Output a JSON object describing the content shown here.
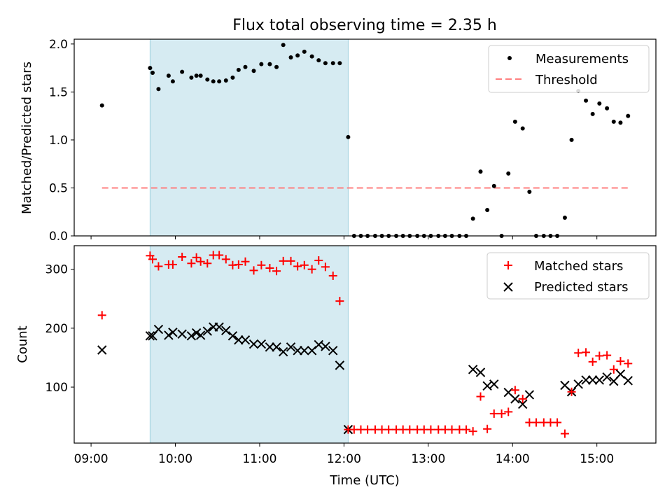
{
  "chart_data": {
    "title": "Flux total observing time = 2.35 h",
    "xlabel": "Time (UTC)",
    "x_ticks": [
      "09:00",
      "10:00",
      "11:00",
      "12:00",
      "13:00",
      "14:00",
      "15:00"
    ],
    "x_tick_hours": [
      9,
      10,
      11,
      12,
      13,
      14,
      15
    ],
    "xlim": [
      8.8,
      15.7
    ],
    "shaded_span": {
      "from": 9.7,
      "to": 12.05,
      "color": "#add8e6"
    },
    "panels": [
      {
        "type": "scatter",
        "ylabel": "Matched/Predicted stars",
        "ylim": [
          0,
          2.05
        ],
        "y_ticks": [
          0.0,
          0.5,
          1.0,
          1.5,
          2.0
        ],
        "y_tick_labels": [
          "0.0",
          "0.5",
          "1.0",
          "1.5",
          "2.0"
        ],
        "legend_position": "top-right",
        "series": [
          {
            "name": "Measurements",
            "marker": "dot",
            "color": "#000000",
            "x": [
              9.13,
              9.7,
              9.73,
              9.8,
              9.92,
              9.97,
              10.08,
              10.19,
              10.25,
              10.3,
              10.38,
              10.45,
              10.52,
              10.6,
              10.68,
              10.75,
              10.83,
              10.93,
              11.02,
              11.12,
              11.2,
              11.28,
              11.37,
              11.45,
              11.53,
              11.62,
              11.7,
              11.78,
              11.87,
              11.95,
              12.05,
              12.12,
              12.2,
              12.28,
              12.37,
              12.45,
              12.53,
              12.62,
              12.7,
              12.78,
              12.87,
              12.95,
              13.03,
              13.12,
              13.2,
              13.28,
              13.37,
              13.45,
              13.53,
              13.62,
              13.7,
              13.78,
              13.87,
              13.95,
              14.03,
              14.12,
              14.2,
              14.28,
              14.37,
              14.45,
              14.53,
              14.62,
              14.7,
              14.78,
              14.87,
              14.95,
              15.03,
              15.12,
              15.2,
              15.28,
              15.37
            ],
            "y": [
              1.36,
              1.75,
              1.7,
              1.53,
              1.67,
              1.61,
              1.71,
              1.65,
              1.67,
              1.67,
              1.63,
              1.61,
              1.61,
              1.62,
              1.65,
              1.73,
              1.76,
              1.72,
              1.79,
              1.79,
              1.76,
              1.99,
              1.86,
              1.88,
              1.92,
              1.87,
              1.83,
              1.8,
              1.8,
              1.8,
              1.03,
              0.0,
              0.0,
              0.0,
              0.0,
              0.0,
              0.0,
              0.0,
              0.0,
              0.0,
              0.0,
              0.0,
              0.0,
              0.0,
              0.0,
              0.0,
              0.0,
              0.0,
              0.18,
              0.67,
              0.27,
              0.52,
              0.0,
              0.65,
              1.19,
              1.12,
              0.46,
              0.0,
              0.0,
              0.0,
              0.0,
              0.19,
              1.0,
              1.51,
              1.41,
              1.27,
              1.38,
              1.33,
              1.19,
              1.18,
              1.25
            ]
          },
          {
            "name": "Threshold",
            "marker": "dashed-line",
            "color": "#ff7f7f",
            "x": [
              9.13,
              15.4
            ],
            "y": [
              0.5,
              0.5
            ]
          }
        ]
      },
      {
        "type": "scatter",
        "ylabel": "Count",
        "ylim": [
          5,
          340
        ],
        "y_ticks": [
          100,
          200,
          300
        ],
        "y_tick_labels": [
          "100",
          "200",
          "300"
        ],
        "legend_position": "top-right",
        "series": [
          {
            "name": "Matched stars",
            "marker": "plus",
            "color": "#ff0000",
            "x": [
              9.13,
              9.7,
              9.73,
              9.8,
              9.92,
              9.97,
              10.08,
              10.19,
              10.25,
              10.3,
              10.38,
              10.45,
              10.52,
              10.6,
              10.68,
              10.75,
              10.83,
              10.93,
              11.02,
              11.12,
              11.2,
              11.28,
              11.37,
              11.45,
              11.53,
              11.62,
              11.7,
              11.78,
              11.87,
              11.95,
              12.05,
              12.12,
              12.2,
              12.28,
              12.37,
              12.45,
              12.53,
              12.62,
              12.7,
              12.78,
              12.87,
              12.95,
              13.03,
              13.12,
              13.2,
              13.28,
              13.37,
              13.45,
              13.53,
              13.62,
              13.7,
              13.78,
              13.87,
              13.95,
              14.03,
              14.12,
              14.2,
              14.28,
              14.37,
              14.45,
              14.53,
              14.62,
              14.7,
              14.78,
              14.87,
              14.95,
              15.03,
              15.12,
              15.2,
              15.28,
              15.37
            ],
            "y": [
              222,
              323,
              317,
              305,
              308,
              308,
              321,
              310,
              320,
              313,
              310,
              324,
              324,
              317,
              307,
              308,
              313,
              298,
              307,
              302,
              297,
              314,
              314,
              305,
              307,
              300,
              315,
              304,
              289,
              246,
              28,
              28,
              28,
              28,
              28,
              28,
              28,
              28,
              28,
              28,
              28,
              28,
              28,
              28,
              28,
              28,
              28,
              28,
              25,
              84,
              29,
              55,
              55,
              58,
              95,
              80,
              40,
              40,
              40,
              40,
              40,
              21,
              92,
              158,
              159,
              143,
              153,
              154,
              130,
              144,
              140
            ]
          },
          {
            "name": "Predicted stars",
            "marker": "x",
            "color": "#000000",
            "x": [
              9.13,
              9.7,
              9.73,
              9.8,
              9.92,
              9.97,
              10.08,
              10.19,
              10.25,
              10.3,
              10.38,
              10.45,
              10.52,
              10.6,
              10.68,
              10.75,
              10.83,
              10.93,
              11.02,
              11.12,
              11.2,
              11.28,
              11.37,
              11.45,
              11.53,
              11.62,
              11.7,
              11.78,
              11.87,
              11.95,
              12.05,
              13.53,
              13.62,
              13.7,
              13.78,
              13.95,
              14.03,
              14.12,
              14.2,
              14.62,
              14.7,
              14.78,
              14.87,
              14.95,
              15.03,
              15.12,
              15.2,
              15.28,
              15.37
            ],
            "y": [
              163,
              187,
              187,
              198,
              188,
              193,
              190,
              187,
              192,
              188,
              195,
              202,
              202,
              196,
              187,
              180,
              180,
              173,
              173,
              168,
              168,
              160,
              168,
              162,
              162,
              162,
              172,
              169,
              162,
              137,
              28,
              130,
              125,
              102,
              105,
              91,
              80,
              71,
              87,
              103,
              92,
              105,
              112,
              112,
              112,
              117,
              110,
              122,
              111
            ]
          }
        ]
      }
    ]
  }
}
